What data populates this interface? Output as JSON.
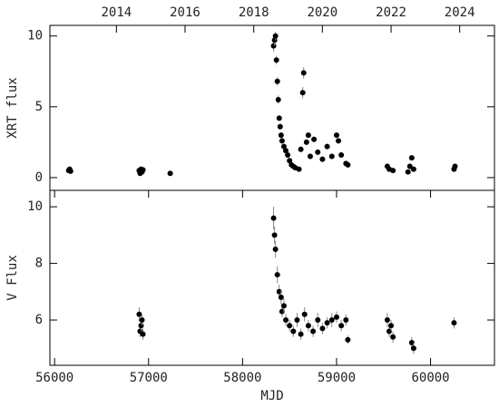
{
  "chart_data": [
    {
      "type": "scatter",
      "ylabel": "XRT flux",
      "color": "#000000",
      "xlim": [
        55950,
        60680
      ],
      "ylim": [
        -0.9,
        10.75
      ],
      "xticks": [
        {
          "value": 56658,
          "label": "2014"
        },
        {
          "value": 57388,
          "label": "2016"
        },
        {
          "value": 58119,
          "label": "2018"
        },
        {
          "value": 58849,
          "label": "2020"
        },
        {
          "value": 59580,
          "label": "2022"
        },
        {
          "value": 60310,
          "label": "2024"
        }
      ],
      "yticks": [
        0,
        5,
        10
      ],
      "x": [
        56150,
        56160,
        56170,
        56900,
        56910,
        56920,
        56930,
        56940,
        57230,
        58330,
        58340,
        58350,
        58360,
        58370,
        58380,
        58390,
        58400,
        58410,
        58420,
        58440,
        58460,
        58480,
        58500,
        58520,
        58540,
        58560,
        58600,
        58620,
        58640,
        58650,
        58680,
        58700,
        58720,
        58760,
        58800,
        58850,
        58900,
        58950,
        59000,
        59020,
        59050,
        59100,
        59120,
        59540,
        59560,
        59600,
        59760,
        59780,
        59800,
        59820,
        60250,
        60260
      ],
      "values": [
        0.5,
        0.6,
        0.45,
        0.5,
        0.3,
        0.6,
        0.4,
        0.55,
        0.3,
        9.3,
        9.7,
        10.0,
        8.3,
        6.8,
        5.5,
        4.2,
        3.6,
        3.0,
        2.6,
        2.2,
        1.9,
        1.6,
        1.2,
        0.9,
        0.8,
        0.7,
        0.6,
        2.0,
        6.0,
        7.4,
        2.5,
        3.0,
        1.5,
        2.7,
        1.8,
        1.3,
        2.2,
        1.5,
        3.0,
        2.6,
        1.6,
        1.0,
        0.9,
        0.8,
        0.6,
        0.5,
        0.4,
        0.8,
        1.4,
        0.6,
        0.6,
        0.8
      ],
      "errors": [
        0.1,
        0.1,
        0.1,
        0.1,
        0.1,
        0.1,
        0.1,
        0.1,
        0.1,
        0.4,
        0.4,
        0.3,
        0.3,
        0.3,
        0.3,
        0.2,
        0.2,
        0.2,
        0.2,
        0.2,
        0.2,
        0.2,
        0.1,
        0.1,
        0.1,
        0.1,
        0.1,
        0.2,
        0.4,
        0.4,
        0.2,
        0.2,
        0.2,
        0.2,
        0.2,
        0.2,
        0.2,
        0.2,
        0.2,
        0.2,
        0.2,
        0.1,
        0.1,
        0.2,
        0.1,
        0.1,
        0.1,
        0.2,
        0.2,
        0.1,
        0.1,
        0.1
      ]
    },
    {
      "type": "scatter",
      "ylabel": "V Flux",
      "xlabel": "MJD",
      "color": "#000000",
      "xlim": [
        55950,
        60680
      ],
      "ylim": [
        4.4,
        10.58
      ],
      "xticks": [
        56000,
        57000,
        58000,
        59000,
        60000
      ],
      "yticks": [
        6,
        8,
        10
      ],
      "x": [
        56900,
        56910,
        56920,
        56930,
        56940,
        58330,
        58340,
        58350,
        58370,
        58390,
        58410,
        58420,
        58440,
        58460,
        58500,
        58540,
        58580,
        58620,
        58660,
        58700,
        58750,
        58800,
        58850,
        58900,
        58950,
        59000,
        59050,
        59100,
        59120,
        59540,
        59560,
        59580,
        59600,
        59800,
        59820,
        60250
      ],
      "values": [
        6.2,
        5.6,
        5.8,
        6.0,
        5.5,
        9.6,
        9.0,
        8.5,
        7.6,
        7.0,
        6.8,
        6.3,
        6.5,
        6.0,
        5.8,
        5.6,
        6.0,
        5.5,
        6.2,
        5.8,
        5.6,
        6.0,
        5.7,
        5.9,
        6.0,
        6.1,
        5.8,
        6.0,
        5.3,
        6.0,
        5.6,
        5.8,
        5.4,
        5.2,
        5.0,
        5.9
      ],
      "errors": [
        0.25,
        0.2,
        0.2,
        0.2,
        0.2,
        0.4,
        0.3,
        0.3,
        0.3,
        0.25,
        0.25,
        0.2,
        0.25,
        0.2,
        0.2,
        0.2,
        0.25,
        0.2,
        0.25,
        0.2,
        0.2,
        0.25,
        0.2,
        0.2,
        0.25,
        0.2,
        0.2,
        0.2,
        0.15,
        0.25,
        0.2,
        0.2,
        0.2,
        0.2,
        0.2,
        0.2
      ]
    }
  ]
}
